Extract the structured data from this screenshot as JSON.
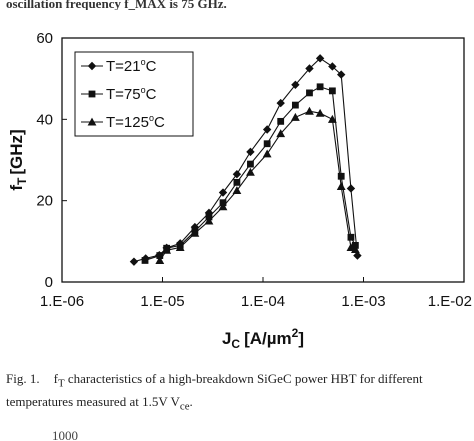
{
  "header_fragment": "oscillation frequency f_MAX is 75 GHz.",
  "chart_data": {
    "type": "line",
    "x_scale": "log",
    "xlim": [
      1e-06,
      0.01
    ],
    "ylim": [
      0,
      60
    ],
    "x_ticks": [
      1e-06,
      1e-05,
      0.0001,
      0.001,
      0.01
    ],
    "x_tick_labels": [
      "1.E-06",
      "1.E-05",
      "1.E-04",
      "1.E-03",
      "1.E-02"
    ],
    "y_ticks": [
      0,
      20,
      40,
      60
    ],
    "y_tick_labels": [
      "0",
      "20",
      "40",
      "60"
    ],
    "ylabel": "f_T [GHz]",
    "xlabel": "J_C [A/µm²]",
    "grid": false,
    "legend": "top-left",
    "series": [
      {
        "name": "T=21°C",
        "marker": "diamond",
        "x": [
          5.2e-06,
          6.8e-06,
          9.3e-06,
          1.1e-05,
          1.5e-05,
          2.1e-05,
          2.9e-05,
          4e-05,
          5.5e-05,
          7.5e-05,
          0.00011,
          0.00015,
          0.00021,
          0.00029,
          0.00037,
          0.00049,
          0.0006,
          0.00075,
          0.00087
        ],
        "y": [
          5.0,
          5.8,
          6.6,
          8.4,
          9.5,
          13.5,
          17.0,
          22.0,
          26.5,
          32.0,
          37.5,
          44.0,
          48.5,
          52.5,
          55.0,
          53.0,
          51.0,
          23.0,
          6.5
        ]
      },
      {
        "name": "T=75°C",
        "marker": "square",
        "x": [
          6.7e-06,
          9.4e-06,
          1.1e-05,
          1.5e-05,
          2.1e-05,
          2.9e-05,
          4e-05,
          5.5e-05,
          7.5e-05,
          0.00011,
          0.00015,
          0.00021,
          0.00029,
          0.00037,
          0.00049,
          0.0006,
          0.00075,
          0.00083
        ],
        "y": [
          5.3,
          6.5,
          8.3,
          9.0,
          12.5,
          16.0,
          19.5,
          24.5,
          29.0,
          34.0,
          39.5,
          43.5,
          46.5,
          48.0,
          47.0,
          26.0,
          11.0,
          9.0
        ]
      },
      {
        "name": "T=125°C",
        "marker": "triangle",
        "x": [
          9.4e-06,
          1.1e-05,
          1.5e-05,
          2.1e-05,
          2.9e-05,
          4e-05,
          5.5e-05,
          7.5e-05,
          0.00011,
          0.00015,
          0.00021,
          0.00029,
          0.00037,
          0.00049,
          0.0006,
          0.00075,
          0.00083
        ],
        "y": [
          5.3,
          7.8,
          8.5,
          12.0,
          15.0,
          18.5,
          22.5,
          27.0,
          31.5,
          36.5,
          40.5,
          42.0,
          41.5,
          40.0,
          23.5,
          8.5,
          8.0
        ]
      }
    ]
  },
  "legend_items": [
    {
      "prefix": "T=21",
      "suffix": "C"
    },
    {
      "prefix": "T=75",
      "suffix": "C"
    },
    {
      "prefix": "T=125",
      "suffix": "C"
    }
  ],
  "axis_title_y": {
    "f": "f",
    "sub": "T",
    "unit": "[GHz]"
  },
  "axis_title_x": {
    "j": "J",
    "sub": "C",
    "unit": "[A/µm",
    "sup": "2",
    "close": "]"
  },
  "caption": {
    "label": "Fig. 1.",
    "text_1": "f",
    "text_1_sub": "T",
    "text_2": " characteristics of a high-breakdown SiGeC power HBT for different temperatures measured at 1.5V V",
    "text_2_sub": "ce",
    "text_3": "."
  },
  "bottom_fragment": "1000"
}
